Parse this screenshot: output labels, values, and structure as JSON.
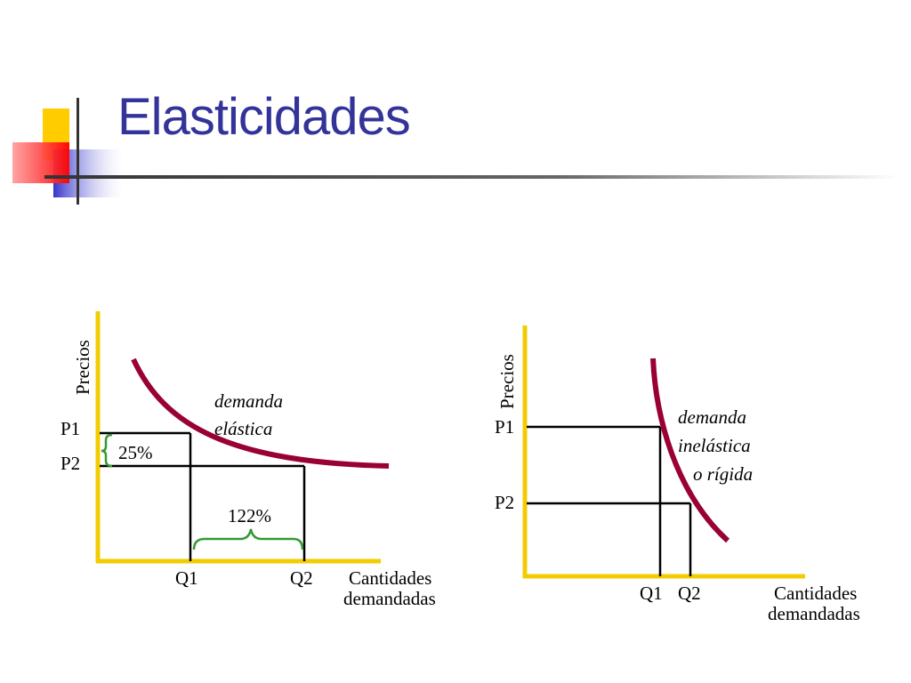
{
  "slide": {
    "title": "Elasticidades"
  },
  "left_diagram": {
    "y_axis_label": "Precios",
    "x_axis_label_line1": "Cantidades",
    "x_axis_label_line2": "demandadas",
    "p1": "P1",
    "p2": "P2",
    "q1": "Q1",
    "q2": "Q2",
    "curve_label_line1": "demanda",
    "curve_label_line2": "elástica",
    "price_change": "25%",
    "quantity_change": "122%"
  },
  "right_diagram": {
    "y_axis_label": "Precios",
    "x_axis_label_line1": "Cantidades",
    "x_axis_label_line2": "demandadas",
    "p1": "P1",
    "p2": "P2",
    "q1": "Q1",
    "q2": "Q2",
    "curve_label_line1": "demanda",
    "curve_label_line2": "inelástica",
    "curve_label_line3": "o rígida"
  },
  "colors": {
    "title": "#333399",
    "axis": "#f2cc00",
    "curve": "#990033",
    "brace": "#339933",
    "guide": "#000000"
  }
}
